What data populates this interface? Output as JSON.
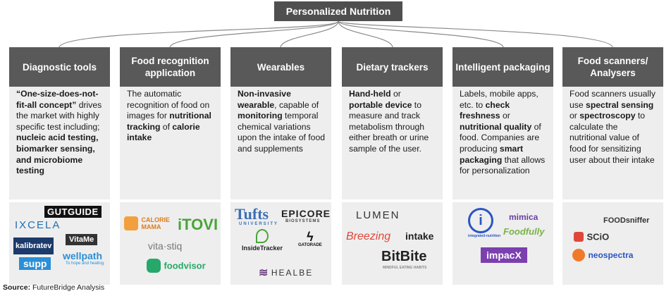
{
  "title": "Personalized Nutrition",
  "columns": [
    {
      "header": "Diagnostic tools",
      "desc_parts": [
        {
          "t": "“One-size-does-not-fit-all concept”",
          "b": true
        },
        {
          "t": " drives the market with highly specific test including; ",
          "b": false
        },
        {
          "t": "nucleic acid testing, biomarker sensing, and microbiome testing",
          "b": true
        }
      ],
      "logos": [
        "GUTGUIDE",
        "IXCELA",
        "kalibratev",
        "VitaMe",
        "wellpath",
        "To hope and healing.",
        "supp"
      ]
    },
    {
      "header": "Food recognition application",
      "desc_parts": [
        {
          "t": "The automatic recognition of food on images for ",
          "b": false
        },
        {
          "t": "nutritional tracking",
          "b": true
        },
        {
          "t": " of ",
          "b": false
        },
        {
          "t": "calorie intake",
          "b": true
        }
      ],
      "logos": [
        "CALORIE MAMA",
        "iTOVI",
        "vita·stiq",
        "foodvisor"
      ]
    },
    {
      "header": "Wearables",
      "desc_parts": [
        {
          "t": "Non-invasive wearable",
          "b": true
        },
        {
          "t": ", capable of ",
          "b": false
        },
        {
          "t": "monitoring",
          "b": true
        },
        {
          "t": " temporal chemical variations upon the intake of food and supplements",
          "b": false
        }
      ],
      "logos": [
        "Tufts",
        "UNIVERSITY",
        "EPICORE",
        "BIOSYSTEMS",
        "InsideTracker",
        "GATORADE",
        "HEALBE"
      ]
    },
    {
      "header": "Dietary trackers",
      "desc_parts": [
        {
          "t": "Hand-held",
          "b": true
        },
        {
          "t": " or ",
          "b": false
        },
        {
          "t": "portable device",
          "b": true
        },
        {
          "t": " to measure and track metabolism through either breath or urine sample of the user.",
          "b": false
        }
      ],
      "logos": [
        "LUMEN",
        "Breezing",
        "intake",
        "BitBite",
        "MINDFUL EATING HABITS"
      ]
    },
    {
      "header": "Intelligent packaging",
      "desc_parts": [
        {
          "t": "Labels, mobile apps, etc. to ",
          "b": false
        },
        {
          "t": "check freshness",
          "b": true
        },
        {
          "t": " or ",
          "b": false
        },
        {
          "t": "nutritional quality",
          "b": true
        },
        {
          "t": " of food. Companies are producing ",
          "b": false
        },
        {
          "t": "smart packaging",
          "b": true
        },
        {
          "t": " that allows for personalization",
          "b": false
        }
      ],
      "logos": [
        "mimica",
        "Foodfully",
        "impacX",
        "integrated-nutrition"
      ]
    },
    {
      "header": "Food scanners/ Analysers",
      "desc_parts": [
        {
          "t": "Food scanners usually use ",
          "b": false
        },
        {
          "t": "spectral sensing",
          "b": true
        },
        {
          "t": " or ",
          "b": false
        },
        {
          "t": "spectroscopy",
          "b": true
        },
        {
          "t": " to calculate the nutritional value of food for sensitizing user about their intake",
          "b": false
        }
      ],
      "logos": [
        "FOODsniffer",
        "SCiO",
        "neospectra"
      ]
    }
  ],
  "source_label": "Source:",
  "source_text": " FutureBridge Analysis",
  "colors": {
    "title_bg": "#4f4f4f",
    "header_bg": "#595959",
    "panel_bg": "#eeeeee",
    "connector": "#8a8a8a"
  }
}
